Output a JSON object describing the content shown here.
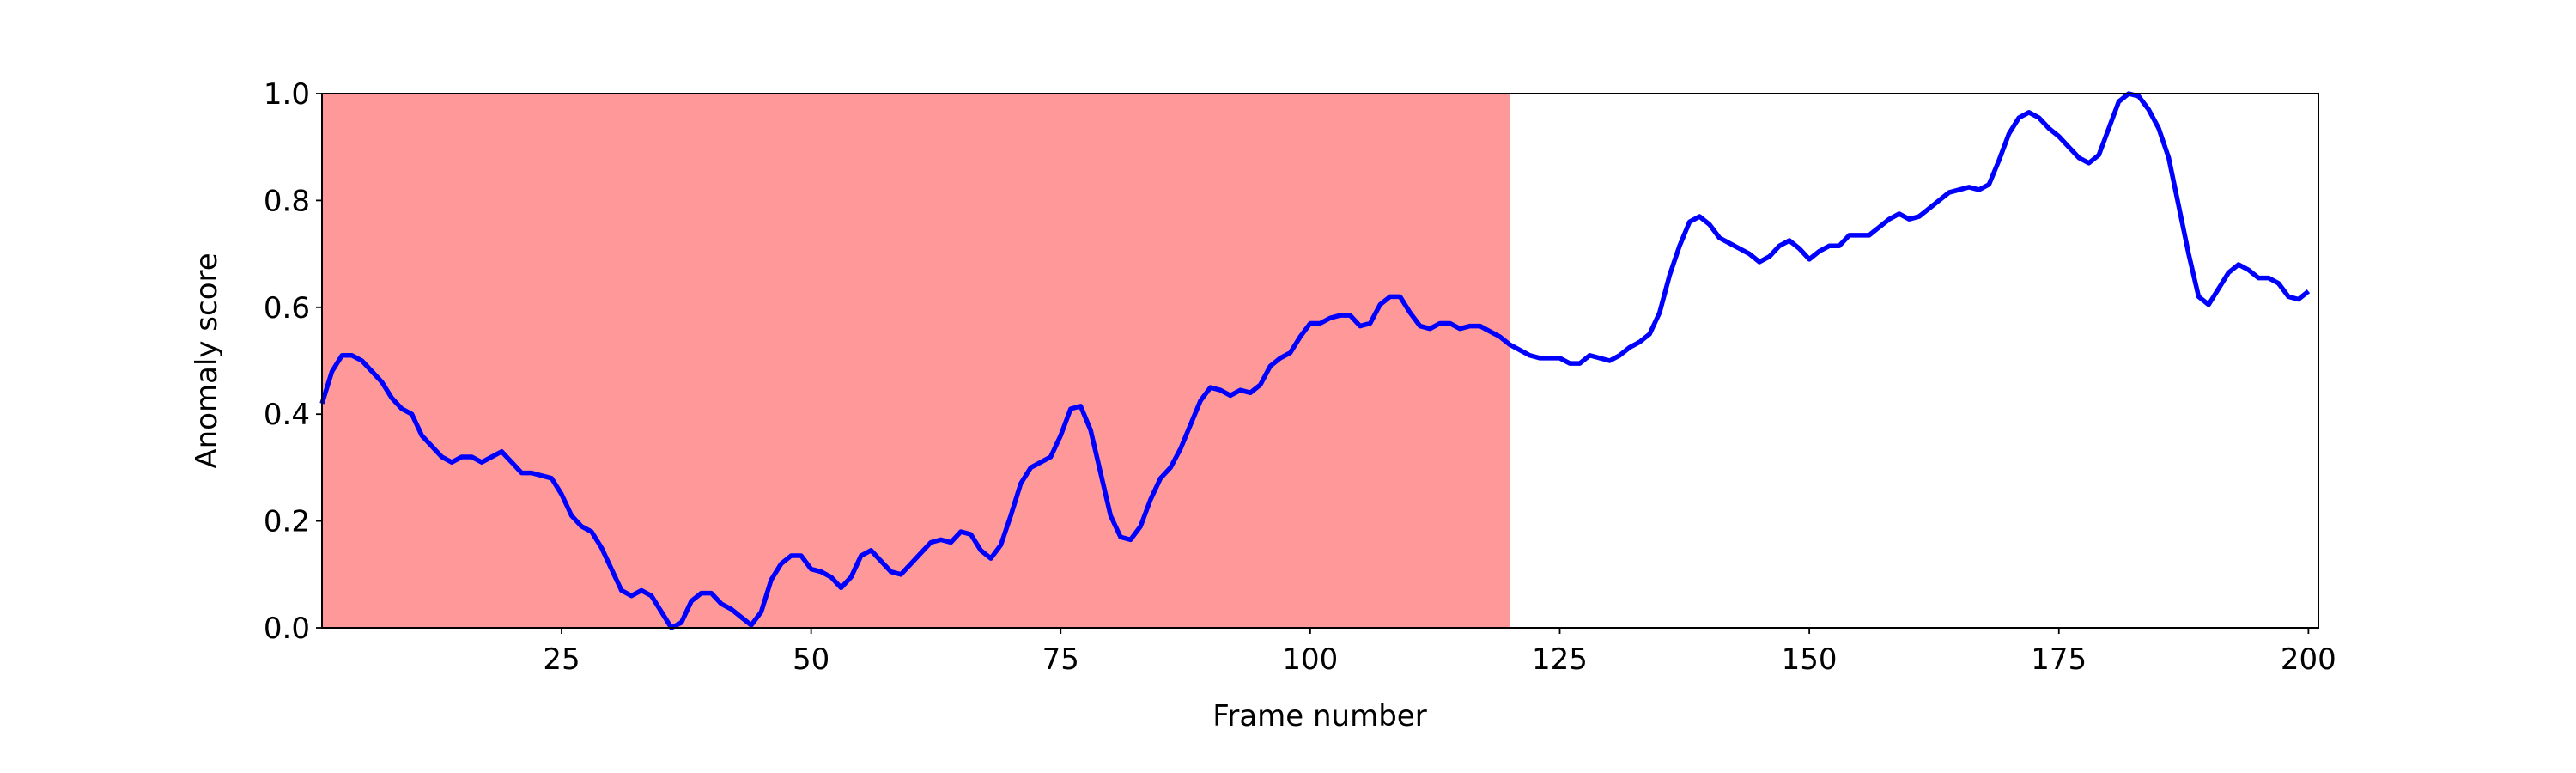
{
  "chart_data": {
    "type": "line",
    "xlabel": "Frame number",
    "ylabel": "Anomaly score",
    "x": [
      1,
      2,
      3,
      4,
      5,
      6,
      7,
      8,
      9,
      10,
      11,
      12,
      13,
      14,
      15,
      16,
      17,
      18,
      19,
      20,
      21,
      22,
      23,
      24,
      25,
      26,
      27,
      28,
      29,
      30,
      31,
      32,
      33,
      34,
      35,
      36,
      37,
      38,
      39,
      40,
      41,
      42,
      43,
      44,
      45,
      46,
      47,
      48,
      49,
      50,
      51,
      52,
      53,
      54,
      55,
      56,
      57,
      58,
      59,
      60,
      61,
      62,
      63,
      64,
      65,
      66,
      67,
      68,
      69,
      70,
      71,
      72,
      73,
      74,
      75,
      76,
      77,
      78,
      79,
      80,
      81,
      82,
      83,
      84,
      85,
      86,
      87,
      88,
      89,
      90,
      91,
      92,
      93,
      94,
      95,
      96,
      97,
      98,
      99,
      100,
      101,
      102,
      103,
      104,
      105,
      106,
      107,
      108,
      109,
      110,
      111,
      112,
      113,
      114,
      115,
      116,
      117,
      118,
      119,
      120,
      121,
      122,
      123,
      124,
      125,
      126,
      127,
      128,
      129,
      130,
      131,
      132,
      133,
      134,
      135,
      136,
      137,
      138,
      139,
      140,
      141,
      142,
      143,
      144,
      145,
      146,
      147,
      148,
      149,
      150,
      151,
      152,
      153,
      154,
      155,
      156,
      157,
      158,
      159,
      160,
      161,
      162,
      163,
      164,
      165,
      166,
      167,
      168,
      169,
      170,
      171,
      172,
      173,
      174,
      175,
      176,
      177,
      178,
      179,
      180,
      181,
      182,
      183,
      184,
      185,
      186,
      187,
      188,
      189,
      190,
      191,
      192,
      193,
      194,
      195,
      196,
      197,
      198,
      199,
      200
    ],
    "series": [
      {
        "color": "#0000ff",
        "values": [
          0.42,
          0.48,
          0.51,
          0.51,
          0.5,
          0.48,
          0.46,
          0.43,
          0.41,
          0.4,
          0.36,
          0.34,
          0.32,
          0.31,
          0.32,
          0.32,
          0.31,
          0.32,
          0.33,
          0.31,
          0.29,
          0.29,
          0.285,
          0.28,
          0.25,
          0.21,
          0.19,
          0.18,
          0.15,
          0.11,
          0.07,
          0.06,
          0.07,
          0.06,
          0.03,
          0.0,
          0.01,
          0.05,
          0.065,
          0.065,
          0.045,
          0.035,
          0.02,
          0.005,
          0.03,
          0.09,
          0.12,
          0.135,
          0.135,
          0.11,
          0.105,
          0.095,
          0.075,
          0.095,
          0.135,
          0.145,
          0.125,
          0.105,
          0.1,
          0.12,
          0.14,
          0.16,
          0.165,
          0.16,
          0.18,
          0.175,
          0.145,
          0.13,
          0.155,
          0.21,
          0.27,
          0.3,
          0.31,
          0.32,
          0.36,
          0.41,
          0.415,
          0.37,
          0.29,
          0.21,
          0.17,
          0.165,
          0.19,
          0.24,
          0.28,
          0.3,
          0.335,
          0.38,
          0.425,
          0.45,
          0.445,
          0.435,
          0.445,
          0.44,
          0.455,
          0.49,
          0.505,
          0.515,
          0.545,
          0.57,
          0.57,
          0.58,
          0.585,
          0.585,
          0.565,
          0.57,
          0.605,
          0.62,
          0.62,
          0.59,
          0.565,
          0.56,
          0.57,
          0.57,
          0.56,
          0.565,
          0.565,
          0.555,
          0.545,
          0.53,
          0.52,
          0.51,
          0.505,
          0.505,
          0.505,
          0.495,
          0.495,
          0.51,
          0.505,
          0.5,
          0.51,
          0.525,
          0.535,
          0.55,
          0.59,
          0.66,
          0.715,
          0.76,
          0.77,
          0.755,
          0.73,
          0.72,
          0.71,
          0.7,
          0.685,
          0.695,
          0.715,
          0.725,
          0.71,
          0.69,
          0.705,
          0.715,
          0.715,
          0.735,
          0.735,
          0.735,
          0.75,
          0.765,
          0.775,
          0.765,
          0.77,
          0.785,
          0.8,
          0.815,
          0.82,
          0.825,
          0.82,
          0.83,
          0.875,
          0.925,
          0.955,
          0.965,
          0.955,
          0.935,
          0.92,
          0.9,
          0.88,
          0.87,
          0.885,
          0.935,
          0.985,
          1.0,
          0.995,
          0.97,
          0.935,
          0.88,
          0.79,
          0.7,
          0.62,
          0.605,
          0.635,
          0.665,
          0.68,
          0.67,
          0.655,
          0.655,
          0.645,
          0.62,
          0.615,
          0.63
        ]
      }
    ],
    "highlight": {
      "x": [
        1,
        120
      ],
      "color": "#ff9999"
    },
    "xlim": [
      1,
      201
    ],
    "ylim": [
      0,
      1
    ],
    "xticks": [
      25,
      50,
      75,
      100,
      125,
      150,
      175,
      200
    ],
    "yticks": [
      {
        "value": 0,
        "label": "0.0"
      },
      0.2,
      0.4,
      0.6,
      0.8,
      {
        "value": 1,
        "label": "1.0"
      }
    ]
  }
}
